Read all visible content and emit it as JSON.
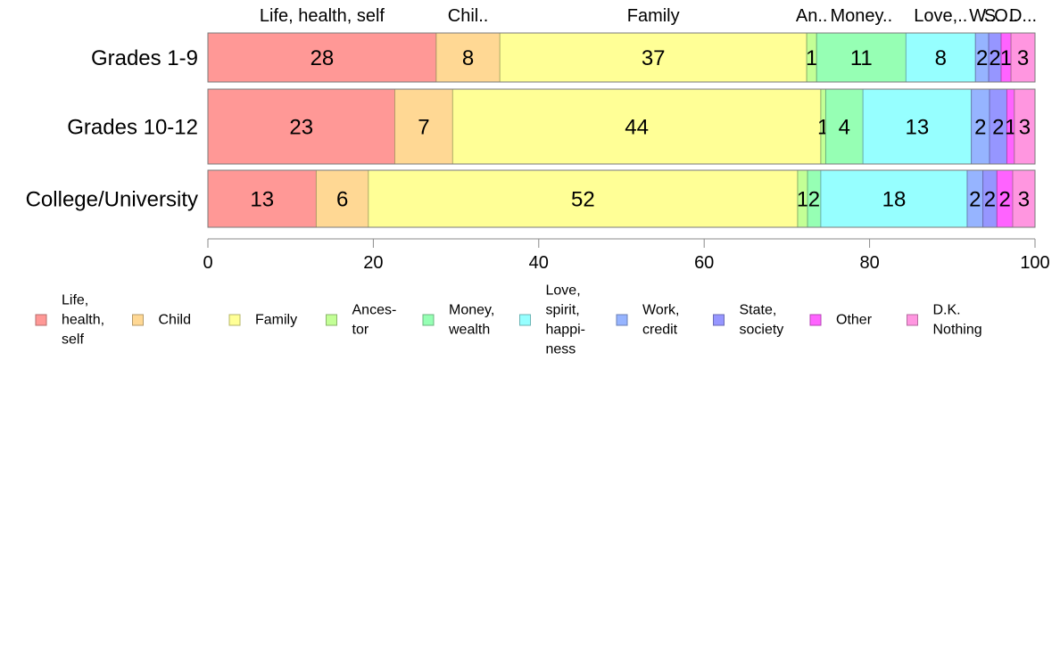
{
  "chart_data": {
    "type": "bar",
    "orientation": "horizontal",
    "stacked": true,
    "categories": [
      "Grades 1-9",
      "Grades 10-12",
      "College/University"
    ],
    "series": [
      {
        "name": "Life, health, self",
        "legend": [
          "Life,",
          "health,",
          "self"
        ],
        "top_label": "Life, health, self",
        "color": "#ff9896",
        "values": [
          27.6,
          22.6,
          13.1
        ],
        "labels": [
          "28",
          "23",
          "13"
        ]
      },
      {
        "name": "Child",
        "legend": [
          "Child"
        ],
        "top_label": "Chil..",
        "color": "#ffd894",
        "values": [
          7.7,
          7.0,
          6.3
        ],
        "labels": [
          "8",
          "7",
          "6"
        ]
      },
      {
        "name": "Family",
        "legend": [
          "Family"
        ],
        "top_label": "Family",
        "color": "#ffff96",
        "values": [
          37.1,
          44.5,
          51.9
        ],
        "labels": [
          "37",
          "44",
          "52"
        ]
      },
      {
        "name": "Ancestor",
        "legend": [
          "Ances-",
          "tor"
        ],
        "top_label": "An..",
        "color": "#c3ff96",
        "values": [
          1.2,
          0.6,
          1.2
        ],
        "labels": [
          "1",
          "1",
          "1"
        ]
      },
      {
        "name": "Money, wealth",
        "legend": [
          "Money,",
          "wealth"
        ],
        "top_label": "Money..",
        "color": "#96ffb4",
        "values": [
          10.8,
          4.5,
          1.6
        ],
        "labels": [
          "11",
          "4",
          "2"
        ]
      },
      {
        "name": "Love, spirit, happiness",
        "legend": [
          "Love,",
          "spirit,",
          "happi-",
          "ness"
        ],
        "top_label": "Love,..",
        "color": "#96ffff",
        "values": [
          8.4,
          13.1,
          17.7
        ],
        "labels": [
          "8",
          "13",
          "18"
        ]
      },
      {
        "name": "Work, credit",
        "legend": [
          "Work,",
          "credit"
        ],
        "top_label": "W..",
        "color": "#96b4ff",
        "values": [
          1.6,
          2.2,
          1.9
        ],
        "labels": [
          "2",
          "2",
          "2"
        ]
      },
      {
        "name": "State, society",
        "legend": [
          "State,",
          "society"
        ],
        "top_label": "S..",
        "color": "#9696ff",
        "values": [
          1.5,
          2.1,
          1.7
        ],
        "labels": [
          "2",
          "2",
          "2"
        ]
      },
      {
        "name": "Other",
        "legend": [
          "Other"
        ],
        "top_label": "O..",
        "color": "#ff63ff",
        "values": [
          1.2,
          0.9,
          1.9
        ],
        "labels": [
          "1",
          "1",
          "2"
        ]
      },
      {
        "name": "D.K. Nothing",
        "legend": [
          "D.K.",
          "Nothing"
        ],
        "top_label": "D...",
        "color": "#ff96e0",
        "values": [
          2.9,
          2.5,
          2.7
        ],
        "labels": [
          "3",
          "3",
          "3"
        ]
      }
    ],
    "xlim": [
      0,
      100
    ],
    "xticks": [
      0,
      20,
      40,
      60,
      80,
      100
    ],
    "legend_position": "bottom",
    "grid": false
  }
}
